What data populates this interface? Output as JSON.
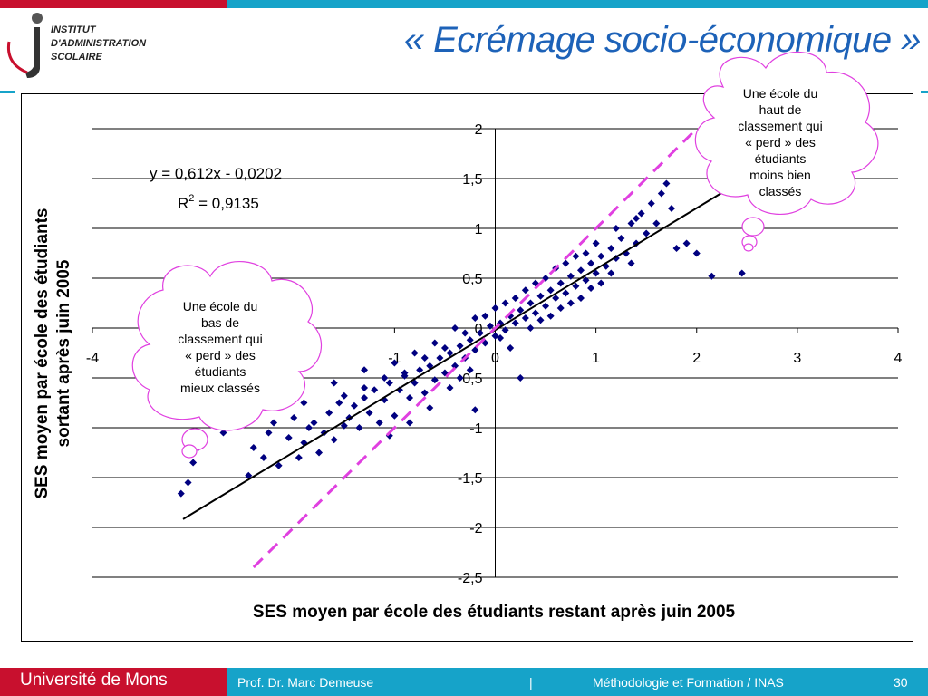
{
  "slide": {
    "title": "« Ecrémage socio-économique »",
    "logo": {
      "line1": "Institut",
      "line2": "d'Administration",
      "line3": "Scolaire"
    }
  },
  "colors": {
    "accent_red": "#c8102e",
    "accent_cyan": "#16a3c9",
    "title_blue": "#1d62b8",
    "points": "#000080",
    "dashed_line": "#e040e0",
    "bubble_border": "#e040e0"
  },
  "chart_data": {
    "type": "scatter",
    "xlabel": "SES moyen par école des étudiants restant après juin 2005",
    "ylabel": "SES moyen par école des étudiants sortant après juin 2005",
    "xlim": [
      -4,
      4
    ],
    "ylim": [
      -2.5,
      2
    ],
    "x_ticks": [
      "-4",
      "-1",
      "0",
      "1",
      "2",
      "3",
      "4"
    ],
    "y_ticks": [
      "2",
      "1,5",
      "1",
      "0,5",
      "0",
      "-0,5",
      "-1",
      "-1,5",
      "-2",
      "-2,5"
    ],
    "grid": "horizontal",
    "regression": {
      "slope": 0.612,
      "intercept": -0.0202,
      "x_range": [
        -3.1,
        2.7
      ]
    },
    "identity_line": {
      "x_range": [
        -2.4,
        2.0
      ]
    },
    "equation_label": "y = 0,612x - 0,0202",
    "r2_prefix": "R",
    "r2_sup": "2",
    "r2_value": " = 0,9135",
    "points": [
      [
        -3.12,
        -1.66
      ],
      [
        -3.05,
        -1.55
      ],
      [
        -3.0,
        -1.35
      ],
      [
        -2.95,
        -1.2
      ],
      [
        -2.7,
        -1.05
      ],
      [
        -2.6,
        -0.85
      ],
      [
        -2.45,
        -1.48
      ],
      [
        -2.4,
        -1.2
      ],
      [
        -2.3,
        -1.3
      ],
      [
        -2.25,
        -1.05
      ],
      [
        -2.2,
        -0.95
      ],
      [
        -2.15,
        -1.38
      ],
      [
        -2.05,
        -1.1
      ],
      [
        -2.0,
        -0.9
      ],
      [
        -1.95,
        -1.3
      ],
      [
        -1.9,
        -1.15
      ],
      [
        -1.85,
        -1.0
      ],
      [
        -1.8,
        -0.95
      ],
      [
        -1.75,
        -1.25
      ],
      [
        -1.7,
        -1.05
      ],
      [
        -1.65,
        -0.85
      ],
      [
        -1.6,
        -1.12
      ],
      [
        -1.55,
        -0.75
      ],
      [
        -1.5,
        -0.98
      ],
      [
        -1.45,
        -0.9
      ],
      [
        -1.4,
        -0.78
      ],
      [
        -1.35,
        -1.0
      ],
      [
        -1.3,
        -0.7
      ],
      [
        -1.25,
        -0.85
      ],
      [
        -1.2,
        -0.62
      ],
      [
        -1.15,
        -0.95
      ],
      [
        -1.1,
        -0.72
      ],
      [
        -1.05,
        -0.55
      ],
      [
        -1.0,
        -0.88
      ],
      [
        -0.95,
        -0.62
      ],
      [
        -0.9,
        -0.48
      ],
      [
        -0.85,
        -0.7
      ],
      [
        -0.8,
        -0.55
      ],
      [
        -0.75,
        -0.42
      ],
      [
        -0.7,
        -0.65
      ],
      [
        -0.65,
        -0.38
      ],
      [
        -0.6,
        -0.52
      ],
      [
        -0.55,
        -0.3
      ],
      [
        -0.5,
        -0.45
      ],
      [
        -0.45,
        -0.25
      ],
      [
        -0.4,
        -0.38
      ],
      [
        -0.35,
        -0.18
      ],
      [
        -0.3,
        -0.3
      ],
      [
        -0.25,
        -0.12
      ],
      [
        -0.2,
        -0.22
      ],
      [
        -0.15,
        -0.05
      ],
      [
        -0.1,
        -0.15
      ],
      [
        -0.05,
        0.02
      ],
      [
        0.0,
        -0.08
      ],
      [
        0.05,
        0.05
      ],
      [
        0.1,
        -0.02
      ],
      [
        0.15,
        0.12
      ],
      [
        0.2,
        0.05
      ],
      [
        0.25,
        0.18
      ],
      [
        0.3,
        0.1
      ],
      [
        0.35,
        0.25
      ],
      [
        0.4,
        0.15
      ],
      [
        0.45,
        0.32
      ],
      [
        0.5,
        0.22
      ],
      [
        0.55,
        0.38
      ],
      [
        0.6,
        0.3
      ],
      [
        0.65,
        0.45
      ],
      [
        0.7,
        0.35
      ],
      [
        0.75,
        0.52
      ],
      [
        0.8,
        0.42
      ],
      [
        0.85,
        0.58
      ],
      [
        0.9,
        0.48
      ],
      [
        0.95,
        0.65
      ],
      [
        1.0,
        0.55
      ],
      [
        1.05,
        0.72
      ],
      [
        1.1,
        0.62
      ],
      [
        1.15,
        0.8
      ],
      [
        1.2,
        0.7
      ],
      [
        1.25,
        0.9
      ],
      [
        1.3,
        0.75
      ],
      [
        1.35,
        1.05
      ],
      [
        1.4,
        0.85
      ],
      [
        1.45,
        1.15
      ],
      [
        1.5,
        0.95
      ],
      [
        1.55,
        1.25
      ],
      [
        1.6,
        1.05
      ],
      [
        1.65,
        1.35
      ],
      [
        1.7,
        1.45
      ],
      [
        1.75,
        1.2
      ],
      [
        1.8,
        0.8
      ],
      [
        1.9,
        0.85
      ],
      [
        2.0,
        0.75
      ],
      [
        2.15,
        0.52
      ],
      [
        2.45,
        0.55
      ],
      [
        -0.2,
        -0.82
      ],
      [
        0.25,
        -0.5
      ],
      [
        -1.9,
        -0.75
      ],
      [
        -2.0,
        -0.3
      ],
      [
        -1.6,
        -0.55
      ],
      [
        -1.3,
        -0.42
      ],
      [
        -1.0,
        -0.35
      ],
      [
        -0.8,
        -0.25
      ],
      [
        -0.6,
        -0.15
      ],
      [
        -0.4,
        0.0
      ],
      [
        -0.2,
        0.1
      ],
      [
        0.0,
        0.2
      ],
      [
        0.2,
        0.3
      ],
      [
        0.4,
        0.45
      ],
      [
        0.6,
        0.6
      ],
      [
        0.8,
        0.72
      ],
      [
        1.0,
        0.85
      ],
      [
        1.2,
        1.0
      ],
      [
        1.4,
        1.1
      ],
      [
        0.9,
        0.75
      ],
      [
        0.7,
        0.65
      ],
      [
        0.5,
        0.5
      ],
      [
        0.3,
        0.38
      ],
      [
        0.1,
        0.25
      ],
      [
        -0.1,
        0.12
      ],
      [
        -0.3,
        -0.05
      ],
      [
        -0.5,
        -0.2
      ],
      [
        -0.7,
        -0.3
      ],
      [
        -0.9,
        -0.45
      ],
      [
        -1.1,
        -0.5
      ],
      [
        -1.3,
        -0.6
      ],
      [
        -1.5,
        -0.68
      ],
      [
        -0.45,
        -0.6
      ],
      [
        -0.25,
        -0.42
      ],
      [
        0.15,
        -0.2
      ],
      [
        0.35,
        0.0
      ],
      [
        0.55,
        0.12
      ],
      [
        0.75,
        0.25
      ],
      [
        0.95,
        0.4
      ],
      [
        1.15,
        0.55
      ],
      [
        1.35,
        0.65
      ],
      [
        -0.65,
        -0.8
      ],
      [
        -0.85,
        -0.95
      ],
      [
        -1.05,
        -1.08
      ],
      [
        -0.35,
        -0.5
      ],
      [
        0.05,
        -0.1
      ],
      [
        0.45,
        0.08
      ],
      [
        0.65,
        0.2
      ],
      [
        0.85,
        0.3
      ],
      [
        1.05,
        0.45
      ]
    ]
  },
  "bubbles": [
    {
      "lines": [
        "Une école du",
        "haut de",
        "classement qui",
        "« perd » des",
        "étudiants",
        "moins bien",
        "classés"
      ]
    },
    {
      "lines": [
        "Une école du",
        "bas de",
        "classement qui",
        "« perd » des",
        "étudiants",
        "mieux classés"
      ]
    }
  ],
  "footer": {
    "university": "Université de Mons",
    "author": "Prof. Dr. Marc Demeuse",
    "separator": "|",
    "course": "Méthodologie et Formation / INAS",
    "page": "30"
  }
}
